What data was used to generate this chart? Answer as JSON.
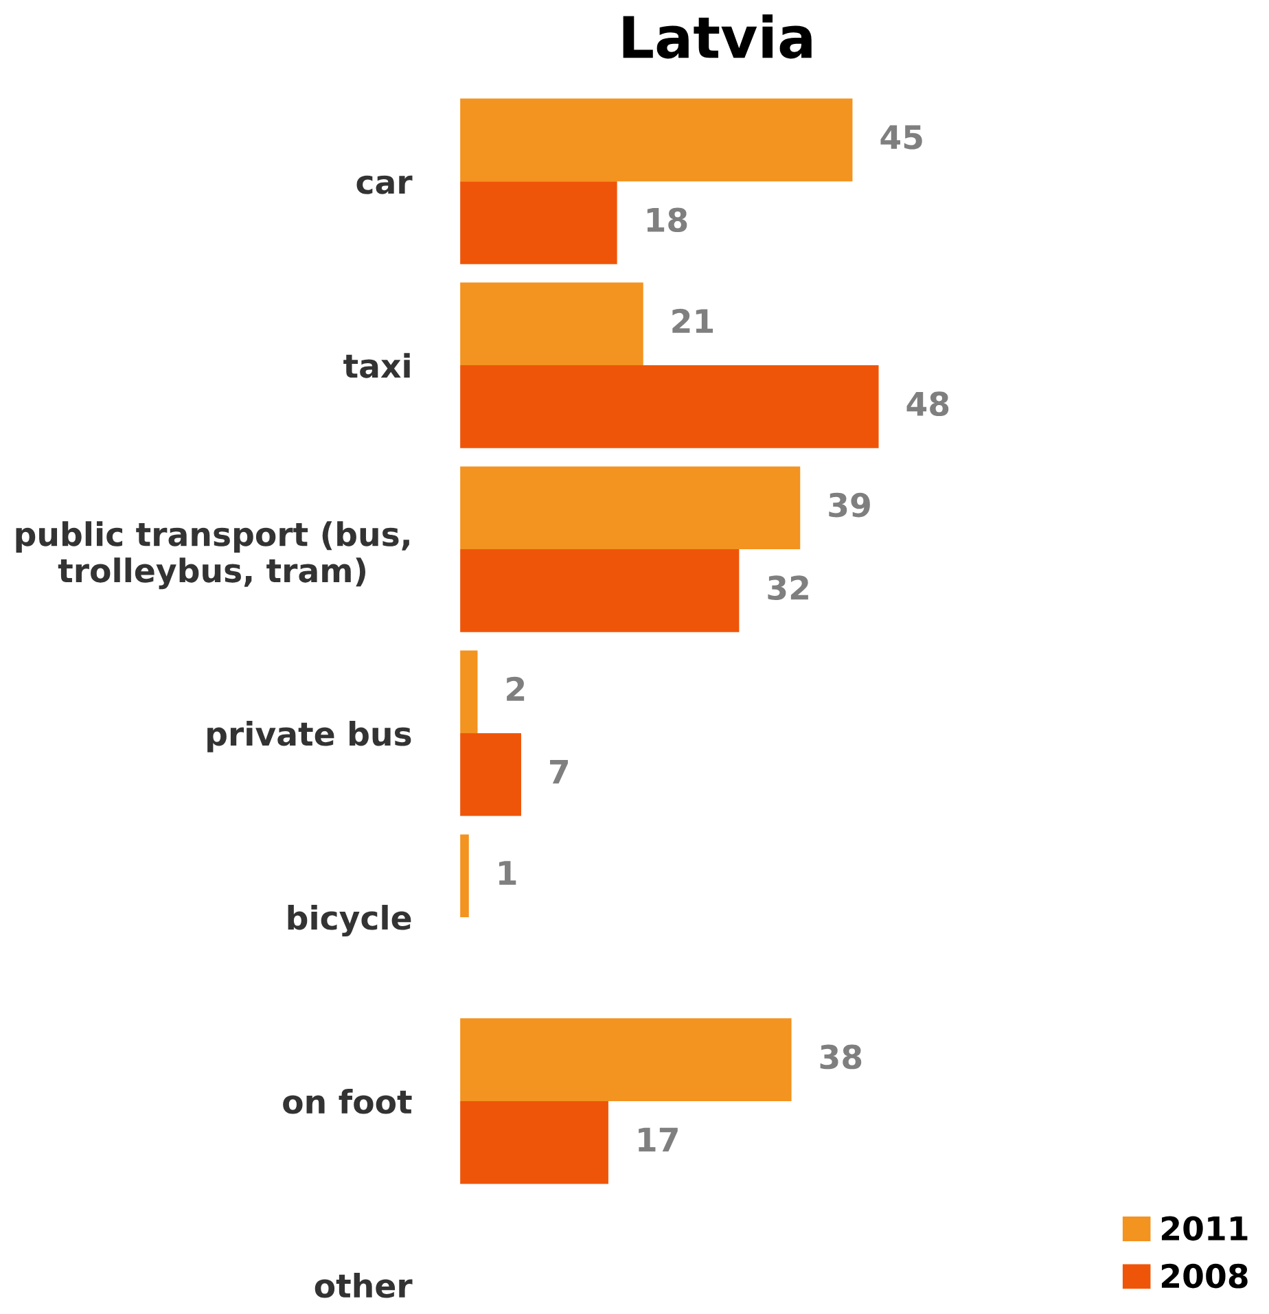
{
  "chart_data": {
    "type": "bar",
    "orientation": "horizontal",
    "title": "Latvia",
    "categories": [
      "car",
      "taxi",
      "public transport (bus,\ntrolleybus, tram)",
      "private bus",
      "bicycle",
      "on foot",
      "other"
    ],
    "series": [
      {
        "name": "2011",
        "color": "#f39320",
        "values": [
          45,
          21,
          39,
          2,
          1,
          38,
          null
        ]
      },
      {
        "name": "2008",
        "color": "#ef5508",
        "values": [
          18,
          48,
          32,
          7,
          null,
          17,
          null
        ]
      }
    ],
    "data_labels": true,
    "legend": "bottom right",
    "tick_labels": "y",
    "grid": false
  }
}
